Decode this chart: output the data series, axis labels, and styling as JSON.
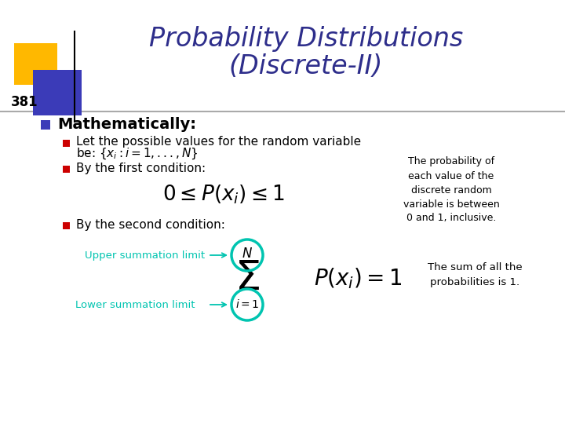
{
  "title_line1": "Probability Distributions",
  "title_line2": "(Discrete-II)",
  "title_color": "#2E2E8B",
  "page_number": "381",
  "bg_color": "#FFFFFF",
  "bullet1_text": "Mathematically:",
  "note1_line1": "The probability of",
  "note1_line2": "each value of the",
  "note1_line3": "discrete random",
  "note1_line4": "variable is between",
  "note1_line5": "0 and 1, inclusive.",
  "note2_line1": "The sum of all the",
  "note2_line2": "probabilities is 1.",
  "upper_label": "Upper summation limit",
  "lower_label": "Lower summation limit",
  "teal_color": "#00C4B0",
  "dark_blue": "#2E2E8B",
  "bullet_blue": "#3B3BB8",
  "red_bullet": "#CC0000",
  "gold_color": "#FFB800",
  "blue_square": "#3B3BB8",
  "line_color": "#AAAAAA"
}
